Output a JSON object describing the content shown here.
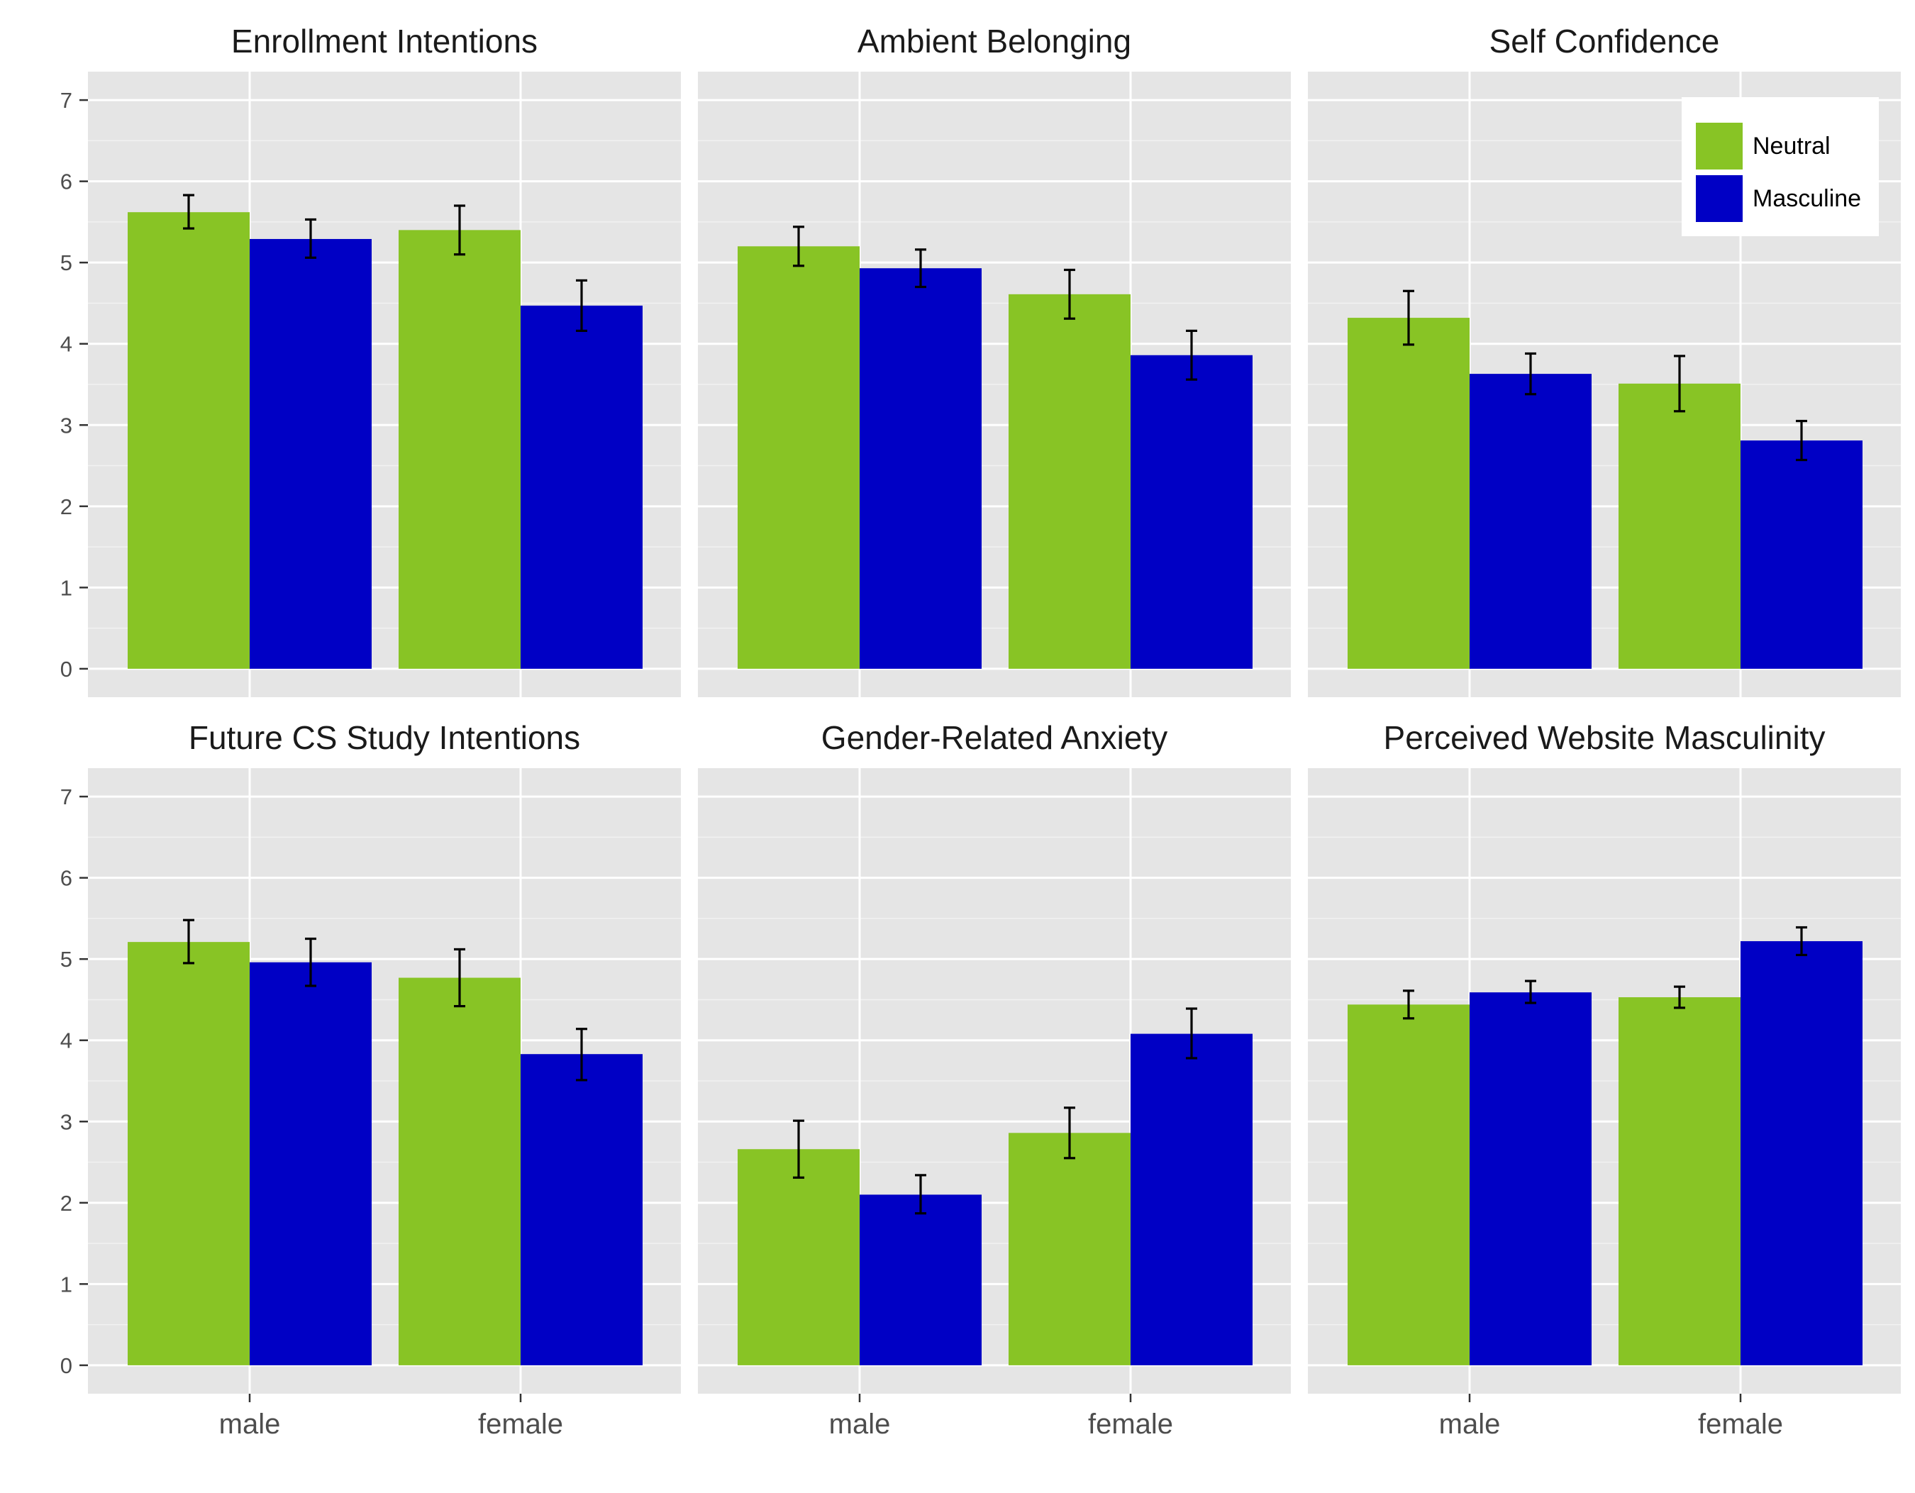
{
  "chart_data": {
    "type": "bar",
    "layout": "facet-grid 2x3",
    "categories": [
      "male",
      "female"
    ],
    "ylim": [
      -0.35,
      7.35
    ],
    "y_ticks": [
      0,
      1,
      2,
      3,
      4,
      5,
      6,
      7
    ],
    "grid": true,
    "legend": {
      "placement": "top-right (inside Self Confidence panel)",
      "entries": [
        {
          "name": "Neutral",
          "color": "#88c425"
        },
        {
          "name": "Masculine",
          "color": "#0000c5"
        }
      ]
    },
    "error_bars": true,
    "panels": [
      {
        "title": "Enrollment Intentions",
        "series": [
          {
            "name": "Neutral",
            "values": [
              5.62,
              5.4
            ],
            "err_low": [
              5.42,
              5.1
            ],
            "err_high": [
              5.83,
              5.7
            ]
          },
          {
            "name": "Masculine",
            "values": [
              5.29,
              4.47
            ],
            "err_low": [
              5.06,
              4.16
            ],
            "err_high": [
              5.53,
              4.78
            ]
          }
        ]
      },
      {
        "title": "Ambient Belonging",
        "series": [
          {
            "name": "Neutral",
            "values": [
              5.2,
              4.61
            ],
            "err_low": [
              4.96,
              4.31
            ],
            "err_high": [
              5.44,
              4.91
            ]
          },
          {
            "name": "Masculine",
            "values": [
              4.93,
              3.86
            ],
            "err_low": [
              4.7,
              3.56
            ],
            "err_high": [
              5.16,
              4.16
            ]
          }
        ]
      },
      {
        "title": "Self Confidence",
        "series": [
          {
            "name": "Neutral",
            "values": [
              4.32,
              3.51
            ],
            "err_low": [
              3.99,
              3.17
            ],
            "err_high": [
              4.65,
              3.85
            ]
          },
          {
            "name": "Masculine",
            "values": [
              3.63,
              2.81
            ],
            "err_low": [
              3.38,
              2.57
            ],
            "err_high": [
              3.88,
              3.05
            ]
          }
        ]
      },
      {
        "title": "Future CS Study Intentions",
        "series": [
          {
            "name": "Neutral",
            "values": [
              5.21,
              4.77
            ],
            "err_low": [
              4.95,
              4.42
            ],
            "err_high": [
              5.48,
              5.12
            ]
          },
          {
            "name": "Masculine",
            "values": [
              4.96,
              3.83
            ],
            "err_low": [
              4.67,
              3.51
            ],
            "err_high": [
              5.25,
              4.14
            ]
          }
        ]
      },
      {
        "title": "Gender-Related Anxiety",
        "series": [
          {
            "name": "Neutral",
            "values": [
              2.66,
              2.86
            ],
            "err_low": [
              2.31,
              2.55
            ],
            "err_high": [
              3.01,
              3.17
            ]
          },
          {
            "name": "Masculine",
            "values": [
              2.1,
              4.08
            ],
            "err_low": [
              1.87,
              3.78
            ],
            "err_high": [
              2.34,
              4.39
            ]
          }
        ]
      },
      {
        "title": "Perceived Website Masculinity",
        "series": [
          {
            "name": "Neutral",
            "values": [
              4.44,
              4.53
            ],
            "err_low": [
              4.27,
              4.4
            ],
            "err_high": [
              4.61,
              4.66
            ]
          },
          {
            "name": "Masculine",
            "values": [
              4.59,
              5.22
            ],
            "err_low": [
              4.46,
              5.05
            ],
            "err_high": [
              4.73,
              5.39
            ]
          }
        ]
      }
    ]
  }
}
